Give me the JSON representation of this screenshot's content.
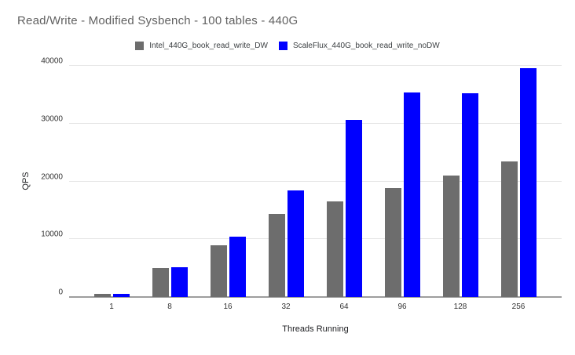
{
  "chart_data": {
    "type": "bar",
    "title": "Read/Write - Modified Sysbench - 100 tables - 440G",
    "xlabel": "Threads Running",
    "ylabel": "QPS",
    "categories": [
      "1",
      "8",
      "16",
      "32",
      "64",
      "96",
      "128",
      "256"
    ],
    "series": [
      {
        "name": "Intel_440G_book_read_write_DW",
        "color": "#6d6d6d",
        "values": [
          600,
          5000,
          9000,
          14400,
          16500,
          18900,
          21000,
          23500
        ]
      },
      {
        "name": "ScaleFlux_440G_book_read_write_noDW",
        "color": "#0000ff",
        "values": [
          600,
          5100,
          10400,
          18400,
          30600,
          35400,
          35300,
          39600
        ]
      }
    ],
    "ylim": [
      0,
      40000
    ],
    "yticks": [
      0,
      10000,
      20000,
      30000,
      40000
    ],
    "grid": true,
    "legend_position": "top"
  },
  "style": {
    "title_color": "#616161",
    "tick_color": "#333333",
    "axis_title_color": "#202124",
    "gridline_color": "#e6e6e6",
    "baseline_color": "#9e9e9e",
    "background": "#ffffff"
  }
}
